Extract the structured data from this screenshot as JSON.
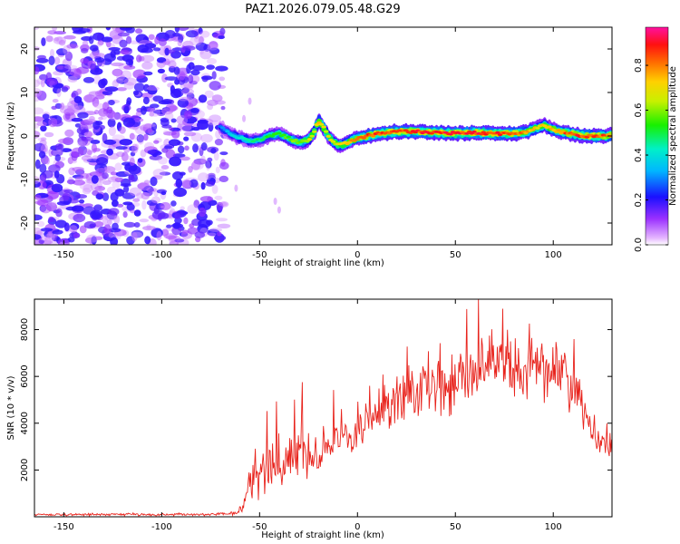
{
  "chart_data": [
    {
      "type": "heatmap",
      "title": "PAZ1.2026.079.05.48.G29",
      "xlabel": "Height of straight line (km)",
      "ylabel": "Frequency (Hz)",
      "xlim": [
        -165,
        130
      ],
      "ylim": [
        -25,
        25
      ],
      "xticks": [
        -150,
        -100,
        -50,
        0,
        50,
        100
      ],
      "yticks": [
        20,
        10,
        0,
        -10,
        -20
      ],
      "colorbar": {
        "label": "Normalized spectral amplitude",
        "range": [
          0,
          0.97
        ],
        "ticks": [
          0.0,
          0.2,
          0.4,
          0.6,
          0.8
        ],
        "colormap": "rainbow (violet-blue-cyan-green-yellow-red-magenta)"
      },
      "noise_region": {
        "x": [
          -165,
          -68
        ],
        "freq_range": [
          -25,
          25
        ],
        "amplitude": [
          0.05,
          0.25
        ]
      },
      "ridge": {
        "x": [
          -70,
          -65,
          -60,
          -55,
          -50,
          -45,
          -40,
          -35,
          -30,
          -25,
          -22,
          -20,
          -18,
          -15,
          -12,
          -10,
          -8,
          -5,
          0,
          5,
          10,
          20,
          30,
          40,
          50,
          60,
          70,
          80,
          85,
          90,
          95,
          100,
          105,
          110,
          115,
          120,
          125,
          130
        ],
        "freq": [
          2,
          0.5,
          -0.5,
          -1,
          -1,
          0,
          0.5,
          -0.5,
          -1.5,
          -1,
          1,
          3.5,
          2.5,
          0,
          -1.5,
          -2,
          -2,
          -1.5,
          -0.5,
          0,
          0.5,
          1,
          1,
          0.8,
          0.6,
          0.8,
          0.5,
          0.6,
          0.8,
          1.5,
          2.5,
          1.5,
          0.8,
          0.5,
          0,
          0,
          0,
          0.2
        ],
        "amplitude": [
          0.3,
          0.4,
          0.45,
          0.5,
          0.5,
          0.55,
          0.6,
          0.6,
          0.65,
          0.7,
          0.75,
          0.8,
          0.75,
          0.7,
          0.7,
          0.72,
          0.75,
          0.78,
          0.85,
          0.9,
          0.92,
          0.95,
          0.95,
          0.95,
          0.95,
          0.95,
          0.95,
          0.93,
          0.85,
          0.8,
          0.75,
          0.8,
          0.88,
          0.92,
          0.93,
          0.92,
          0.9,
          0.85
        ]
      }
    },
    {
      "type": "line",
      "xlabel": "Height of straight line (km)",
      "ylabel": "SNR (10 * v/v)",
      "xlim": [
        -165,
        130
      ],
      "ylim": [
        0,
        9300
      ],
      "xticks": [
        -150,
        -100,
        -50,
        0,
        50,
        100
      ],
      "yticks": [
        2000,
        4000,
        6000,
        8000
      ],
      "series": [
        {
          "name": "SNR",
          "color": "#e8231c",
          "x": [
            -165,
            -140,
            -120,
            -100,
            -80,
            -62,
            -58,
            -55,
            -50,
            -45,
            -40,
            -35,
            -30,
            -25,
            -20,
            -15,
            -10,
            -5,
            0,
            5,
            10,
            15,
            20,
            25,
            30,
            35,
            40,
            45,
            50,
            55,
            60,
            65,
            70,
            75,
            80,
            85,
            90,
            95,
            100,
            105,
            110,
            115,
            120,
            125,
            130
          ],
          "y": [
            100,
            90,
            110,
            95,
            100,
            150,
            500,
            1400,
            1700,
            2000,
            2300,
            2600,
            3000,
            2700,
            2700,
            3000,
            3300,
            3200,
            3300,
            4200,
            4200,
            4600,
            5000,
            5300,
            5300,
            5500,
            5600,
            5700,
            6200,
            6200,
            6300,
            6500,
            6600,
            6600,
            6400,
            6600,
            6500,
            6300,
            6200,
            6000,
            5200,
            4600,
            3500,
            3200,
            3000
          ],
          "noise_amplitude": [
            60,
            60,
            60,
            60,
            60,
            80,
            400,
            900,
            1000,
            1100,
            1200,
            1300,
            1400,
            1200,
            1100,
            900,
            800,
            700,
            700,
            900,
            1000,
            1100,
            1200,
            1200,
            1300,
            1300,
            1300,
            1400,
            1500,
            1500,
            1500,
            1500,
            1500,
            1500,
            1500,
            1500,
            1500,
            1500,
            1500,
            1400,
            1200,
            1000,
            700,
            500,
            400
          ]
        }
      ]
    }
  ]
}
